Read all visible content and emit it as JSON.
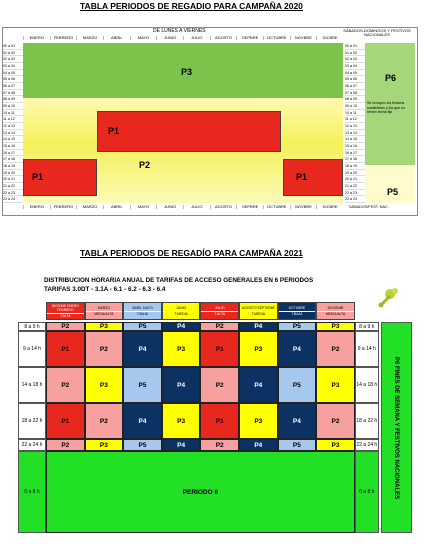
{
  "t2020": {
    "title": "TABLA PERIODOS DE REGADIO PARA CAMPAÑA 2020",
    "weekday_header": "DE LUNES A VIERNES",
    "weekend_header": "SÁBADOS-DOMINGOS Y FESTIVOS NACIONALES",
    "months": [
      "ENERO",
      "FEBRERO",
      "MARZO",
      "ABRIL",
      "MAYO",
      "JUNIO",
      "JULIO",
      "AGOSTO",
      "SEPBRE",
      "OCTUBRE",
      "NOVBRE",
      "DICBRE"
    ],
    "bottom_right": "SÁBADOS/FEST. NAC.",
    "hours": [
      "00 a 01",
      "01 a 02",
      "02 a 03",
      "03 a 04",
      "04 a 05",
      "05 a 06",
      "06 a 07",
      "07 a 08",
      "08 a 09",
      "09 a 10",
      "10 a 11",
      "11 a 12",
      "12 a 13",
      "13 a 14",
      "14 a 15",
      "15 a 16",
      "16 a 17",
      "17 a 18",
      "18 a 19",
      "19 a 20",
      "20 a 21",
      "21 a 22",
      "22 a 23",
      "23 a 24"
    ],
    "periods": {
      "p1a": "P1",
      "p1b": "P1",
      "p1c": "P1",
      "p2": "P2",
      "p3": "P3",
      "p5": "P5",
      "p6": "P6"
    },
    "note": "Se incluyen los festivos sustituibles y los que no tienen fecha fija"
  },
  "t2021": {
    "title": "TABLA PERIODOS DE REGADÍO PARA CAMPAÑA 2021",
    "subtitle1": "DISTRIBUCION HORARIA ANUAL DE TARIFAS DE ACCESO GENERALES EN 6 PERIODOS",
    "subtitle2": "TARIFAS 3.0DT - 3.1A - 6.1 - 6.2 - 6.3 - 6.4",
    "col_headers": [
      {
        "months": "DICIEMB ENERO FEBRERO",
        "tariff": "T.ALTA"
      },
      {
        "months": "MARZO",
        "tariff": "MEDIA ALTA"
      },
      {
        "months": "ABRIL MAYO",
        "tariff": "T.BAJA"
      },
      {
        "months": "JUNIO",
        "tariff": "T.MEDIA"
      },
      {
        "months": "JULIO",
        "tariff": "T.ALTA"
      },
      {
        "months": "AGOSTO SEPTIEMB",
        "tariff": "T.MEDIA"
      },
      {
        "months": "OCTUBRE",
        "tariff": "T.BAJA"
      },
      {
        "months": "NOVIEMB",
        "tariff": "MEDIA ALTA"
      }
    ],
    "hours_left": [
      "8 a 9 h",
      "9 a 14 h",
      "14 a 18 h",
      "18 a 22 h",
      "22 a 24 h",
      "0 a 8 h"
    ],
    "hours_right": [
      "8 a 9 h",
      "9 a 14 h",
      "14 a 18 h",
      "18 a 22 h",
      "22 a 24 h",
      "0 a 8 h"
    ],
    "rows": [
      [
        "P2",
        "P3",
        "P5",
        "P4",
        "P2",
        "P4",
        "P5",
        "P3"
      ],
      [
        "P1",
        "P2",
        "P4",
        "P3",
        "P1",
        "P3",
        "P4",
        "P2"
      ],
      [
        "P2",
        "P3",
        "P5",
        "P4",
        "P2",
        "P4",
        "P5",
        "P3"
      ],
      [
        "P1",
        "P2",
        "P4",
        "P3",
        "P1",
        "P3",
        "P4",
        "P2"
      ],
      [
        "P2",
        "P3",
        "P5",
        "P4",
        "P2",
        "P4",
        "P5",
        "P3"
      ]
    ],
    "night": "PERIODO 6",
    "weekend": "P6 FINES DE SEMANA Y FESTIVOS NACIONALES"
  },
  "colors": {
    "p1": "#e8281e",
    "p2": "#f6a0a0",
    "p3": "#ffff00",
    "p4": "#0c3163",
    "p5": "#a6c8ef",
    "p6": "#22e026",
    "p3_2020": "#78c24b",
    "p2_2020": "#f5f5a0",
    "p6_2020": "#a5d67a"
  }
}
